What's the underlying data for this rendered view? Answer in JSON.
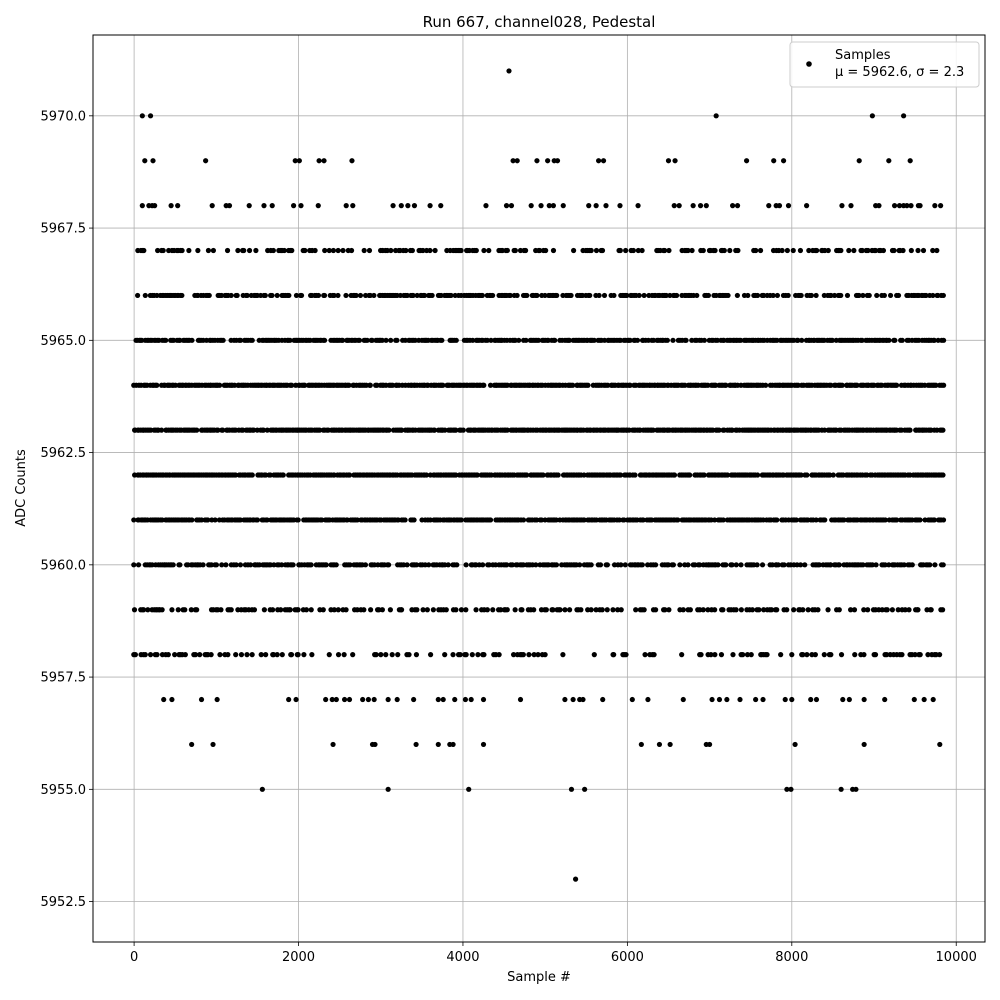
{
  "chart_data": {
    "type": "scatter",
    "title": "Run 667, channel028, Pedestal",
    "xlabel": "Sample #",
    "ylabel": "ADC Counts",
    "xlim": [
      -500,
      10350
    ],
    "ylim": [
      5951.6,
      5971.8
    ],
    "xticks": [
      0,
      2000,
      4000,
      6000,
      8000,
      10000
    ],
    "yticks": [
      5952.5,
      5955.0,
      5957.5,
      5960.0,
      5962.5,
      5965.0,
      5967.5,
      5970.0
    ],
    "xtick_labels": [
      "0",
      "2000",
      "4000",
      "6000",
      "8000",
      "10000"
    ],
    "ytick_labels": [
      "5952.5",
      "5955.0",
      "5957.5",
      "5960.0",
      "5962.5",
      "5965.0",
      "5967.5",
      "5970.0"
    ],
    "grid": true,
    "marker_color": "#000000",
    "legend": {
      "placement": "top-right",
      "entry_label": "Samples",
      "stats_line": "μ = 5962.6, σ = 2.3"
    },
    "series": [
      {
        "name": "Samples",
        "dense_levels": [
          {
            "y": 5967,
            "density": 0.35
          },
          {
            "y": 5966,
            "density": 0.55
          },
          {
            "y": 5965,
            "density": 0.75
          },
          {
            "y": 5964,
            "density": 0.85
          },
          {
            "y": 5963,
            "density": 0.9
          },
          {
            "y": 5962,
            "density": 0.9
          },
          {
            "y": 5961,
            "density": 0.8
          },
          {
            "y": 5960,
            "density": 0.6
          },
          {
            "y": 5959,
            "density": 0.35
          },
          {
            "y": 5958,
            "density": 0.25
          }
        ],
        "sparse_points": [
          [
            100,
            5970
          ],
          [
            200,
            5970
          ],
          [
            7080,
            5970
          ],
          [
            8980,
            5970
          ],
          [
            9360,
            5970
          ],
          [
            4560,
            5971
          ],
          [
            5370,
            5953
          ],
          [
            1560,
            5955
          ],
          [
            3090,
            5955
          ],
          [
            4070,
            5955
          ],
          [
            5320,
            5955
          ],
          [
            5480,
            5955
          ],
          [
            7940,
            5955
          ],
          [
            7990,
            5955
          ],
          [
            8600,
            5955
          ],
          [
            8740,
            5955
          ],
          [
            8780,
            5955
          ],
          [
            700,
            5956
          ],
          [
            960,
            5956
          ],
          [
            2420,
            5956
          ],
          [
            2900,
            5956
          ],
          [
            2930,
            5956
          ],
          [
            3430,
            5956
          ],
          [
            3700,
            5956
          ],
          [
            3840,
            5956
          ],
          [
            3880,
            5956
          ],
          [
            4250,
            5956
          ],
          [
            6170,
            5956
          ],
          [
            6390,
            5956
          ],
          [
            6520,
            5956
          ],
          [
            6960,
            5956
          ],
          [
            7000,
            5956
          ],
          [
            8040,
            5956
          ],
          [
            8880,
            5956
          ],
          [
            9800,
            5956
          ],
          [
            360,
            5957
          ],
          [
            460,
            5957
          ],
          [
            820,
            5957
          ],
          [
            1010,
            5957
          ],
          [
            1880,
            5957
          ],
          [
            1970,
            5957
          ],
          [
            2330,
            5957
          ],
          [
            2410,
            5957
          ],
          [
            2460,
            5957
          ],
          [
            2560,
            5957
          ],
          [
            2620,
            5957
          ],
          [
            2780,
            5957
          ],
          [
            2850,
            5957
          ],
          [
            2920,
            5957
          ],
          [
            3090,
            5957
          ],
          [
            3200,
            5957
          ],
          [
            3400,
            5957
          ],
          [
            3700,
            5957
          ],
          [
            3760,
            5957
          ],
          [
            3900,
            5957
          ],
          [
            4030,
            5957
          ],
          [
            4100,
            5957
          ],
          [
            4250,
            5957
          ],
          [
            4700,
            5957
          ],
          [
            5240,
            5957
          ],
          [
            5340,
            5957
          ],
          [
            5420,
            5957
          ],
          [
            5460,
            5957
          ],
          [
            5700,
            5957
          ],
          [
            6060,
            5957
          ],
          [
            6250,
            5957
          ],
          [
            6680,
            5957
          ],
          [
            7030,
            5957
          ],
          [
            7120,
            5957
          ],
          [
            7210,
            5957
          ],
          [
            7370,
            5957
          ],
          [
            7560,
            5957
          ],
          [
            7650,
            5957
          ],
          [
            7920,
            5957
          ],
          [
            8000,
            5957
          ],
          [
            8230,
            5957
          ],
          [
            8300,
            5957
          ],
          [
            8620,
            5957
          ],
          [
            8700,
            5957
          ],
          [
            8880,
            5957
          ],
          [
            9130,
            5957
          ],
          [
            9490,
            5957
          ],
          [
            9610,
            5957
          ],
          [
            9720,
            5957
          ],
          [
            130,
            5969
          ],
          [
            230,
            5969
          ],
          [
            870,
            5969
          ],
          [
            1960,
            5969
          ],
          [
            2010,
            5969
          ],
          [
            2250,
            5969
          ],
          [
            2310,
            5969
          ],
          [
            2650,
            5969
          ],
          [
            4610,
            5969
          ],
          [
            4660,
            5969
          ],
          [
            4900,
            5969
          ],
          [
            5030,
            5969
          ],
          [
            5110,
            5969
          ],
          [
            5150,
            5969
          ],
          [
            5650,
            5969
          ],
          [
            5710,
            5969
          ],
          [
            6500,
            5969
          ],
          [
            6580,
            5969
          ],
          [
            7450,
            5969
          ],
          [
            7780,
            5969
          ],
          [
            7900,
            5969
          ],
          [
            8820,
            5969
          ],
          [
            9180,
            5969
          ],
          [
            9440,
            5969
          ],
          [
            100,
            5968
          ],
          [
            180,
            5968
          ],
          [
            220,
            5968
          ],
          [
            250,
            5968
          ],
          [
            450,
            5968
          ],
          [
            530,
            5968
          ],
          [
            950,
            5968
          ],
          [
            1120,
            5968
          ],
          [
            1160,
            5968
          ],
          [
            1400,
            5968
          ],
          [
            1580,
            5968
          ],
          [
            1680,
            5968
          ],
          [
            1940,
            5968
          ],
          [
            2030,
            5968
          ],
          [
            2240,
            5968
          ],
          [
            2580,
            5968
          ],
          [
            2660,
            5968
          ],
          [
            3150,
            5968
          ],
          [
            3250,
            5968
          ],
          [
            3330,
            5968
          ],
          [
            3410,
            5968
          ],
          [
            3600,
            5968
          ],
          [
            3730,
            5968
          ],
          [
            4280,
            5968
          ],
          [
            4530,
            5968
          ],
          [
            4590,
            5968
          ],
          [
            4830,
            5968
          ],
          [
            4950,
            5968
          ],
          [
            5050,
            5968
          ],
          [
            5100,
            5968
          ],
          [
            5220,
            5968
          ],
          [
            5530,
            5968
          ],
          [
            5620,
            5968
          ],
          [
            5740,
            5968
          ],
          [
            5910,
            5968
          ],
          [
            6130,
            5968
          ],
          [
            6570,
            5968
          ],
          [
            6630,
            5968
          ],
          [
            6800,
            5968
          ],
          [
            6890,
            5968
          ],
          [
            6960,
            5968
          ],
          [
            7280,
            5968
          ],
          [
            7340,
            5968
          ],
          [
            7720,
            5968
          ],
          [
            7810,
            5968
          ],
          [
            7850,
            5968
          ],
          [
            7960,
            5968
          ],
          [
            8180,
            5968
          ],
          [
            8610,
            5968
          ],
          [
            8720,
            5968
          ],
          [
            9020,
            5968
          ],
          [
            9060,
            5968
          ],
          [
            9250,
            5968
          ],
          [
            9310,
            5968
          ],
          [
            9360,
            5968
          ],
          [
            9400,
            5968
          ],
          [
            9450,
            5968
          ],
          [
            9540,
            5968
          ],
          [
            9560,
            5968
          ],
          [
            9740,
            5968
          ],
          [
            9810,
            5968
          ]
        ]
      }
    ]
  }
}
